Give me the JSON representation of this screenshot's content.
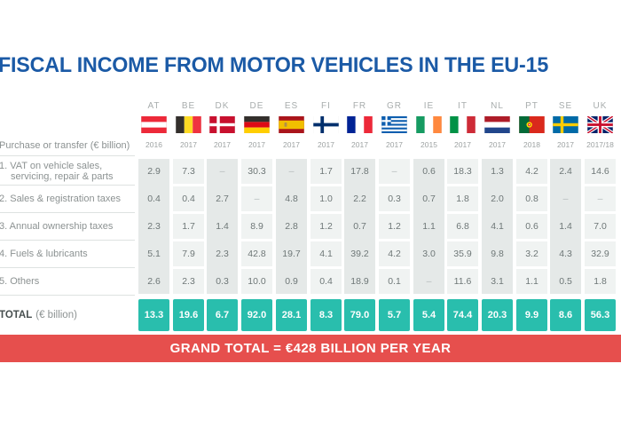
{
  "title": "FISCAL INCOME FROM MOTOR VEHICLES IN THE EU-15",
  "colors": {
    "title_blue": "#1B5AA6",
    "accent_teal": "#29BEAD",
    "banner_red": "#E64F4D",
    "stripe_dark": "#E5E9E8",
    "cell_light": "#F0F3F2"
  },
  "chart_data": {
    "type": "table",
    "title": "FISCAL INCOME FROM MOTOR VEHICLES IN THE EU-15",
    "year_row_label": "Purchase or transfer (€ billion)",
    "columns": [
      "AT",
      "BE",
      "DK",
      "DE",
      "ES",
      "FI",
      "FR",
      "GR",
      "IE",
      "IT",
      "NL",
      "PT",
      "SE",
      "UK"
    ],
    "flag_icons": [
      "flag-at-icon",
      "flag-be-icon",
      "flag-dk-icon",
      "flag-de-icon",
      "flag-es-icon",
      "flag-fi-icon",
      "flag-fr-icon",
      "flag-gr-icon",
      "flag-ie-icon",
      "flag-it-icon",
      "flag-nl-icon",
      "flag-pt-icon",
      "flag-se-icon",
      "flag-uk-icon"
    ],
    "years": [
      "2016",
      "2017",
      "2017",
      "2017",
      "2017",
      "2017",
      "2017",
      "2017",
      "2015",
      "2017",
      "2017",
      "2018",
      "2017",
      "2017/18"
    ],
    "rows": [
      {
        "label": "1. VAT on vehicle sales, servicing, repair & parts",
        "values": [
          "2.9",
          "7.3",
          "–",
          "30.3",
          "–",
          "1.7",
          "17.8",
          "–",
          "0.6",
          "18.3",
          "1.3",
          "4.2",
          "2.4",
          "14.6"
        ]
      },
      {
        "label": "2. Sales & registration taxes",
        "values": [
          "0.4",
          "0.4",
          "2.7",
          "–",
          "4.8",
          "1.0",
          "2.2",
          "0.3",
          "0.7",
          "1.8",
          "2.0",
          "0.8",
          "–",
          "–"
        ]
      },
      {
        "label": "3. Annual ownership taxes",
        "values": [
          "2.3",
          "1.7",
          "1.4",
          "8.9",
          "2.8",
          "1.2",
          "0.7",
          "1.2",
          "1.1",
          "6.8",
          "4.1",
          "0.6",
          "1.4",
          "7.0"
        ]
      },
      {
        "label": "4. Fuels & lubricants",
        "values": [
          "5.1",
          "7.9",
          "2.3",
          "42.8",
          "19.7",
          "4.1",
          "39.2",
          "4.2",
          "3.0",
          "35.9",
          "9.8",
          "3.2",
          "4.3",
          "32.9"
        ]
      },
      {
        "label": "5. Others",
        "values": [
          "2.6",
          "2.3",
          "0.3",
          "10.0",
          "0.9",
          "0.4",
          "18.9",
          "0.1",
          "–",
          "11.6",
          "3.1",
          "1.1",
          "0.5",
          "1.8"
        ]
      }
    ],
    "total": {
      "label": "TOTAL",
      "unit": "(€ billion)",
      "values": [
        "13.3",
        "19.6",
        "6.7",
        "92.0",
        "28.1",
        "8.3",
        "79.0",
        "5.7",
        "5.4",
        "74.4",
        "20.3",
        "9.9",
        "8.6",
        "56.3"
      ]
    },
    "grand_total": "GRAND TOTAL = €428 BILLION PER YEAR"
  }
}
